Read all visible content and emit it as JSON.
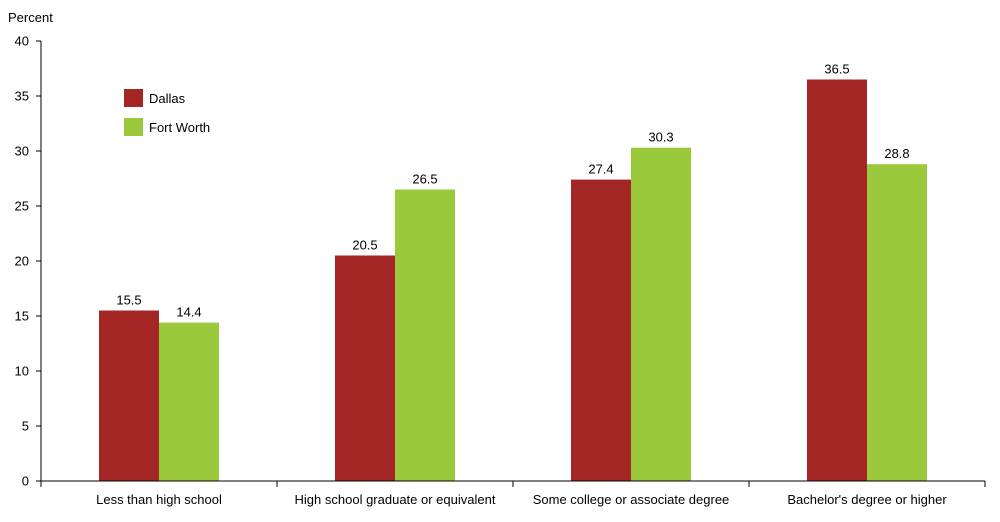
{
  "chart_data": {
    "type": "bar",
    "ylabel": "Percent",
    "ylim": [
      0,
      40
    ],
    "yticks": [
      0,
      5,
      10,
      15,
      20,
      25,
      30,
      35,
      40
    ],
    "categories": [
      "Less than high school",
      "High school graduate or equivalent",
      "Some college or associate degree",
      "Bachelor's degree or higher"
    ],
    "series": [
      {
        "name": "Dallas",
        "color": "#a32624",
        "values": [
          15.5,
          20.5,
          27.4,
          36.5
        ]
      },
      {
        "name": "Fort Worth",
        "color": "#9bc93c",
        "values": [
          14.4,
          26.5,
          30.3,
          28.8
        ]
      }
    ],
    "data_labels": true,
    "grid": false,
    "legend_position": "top-left"
  }
}
